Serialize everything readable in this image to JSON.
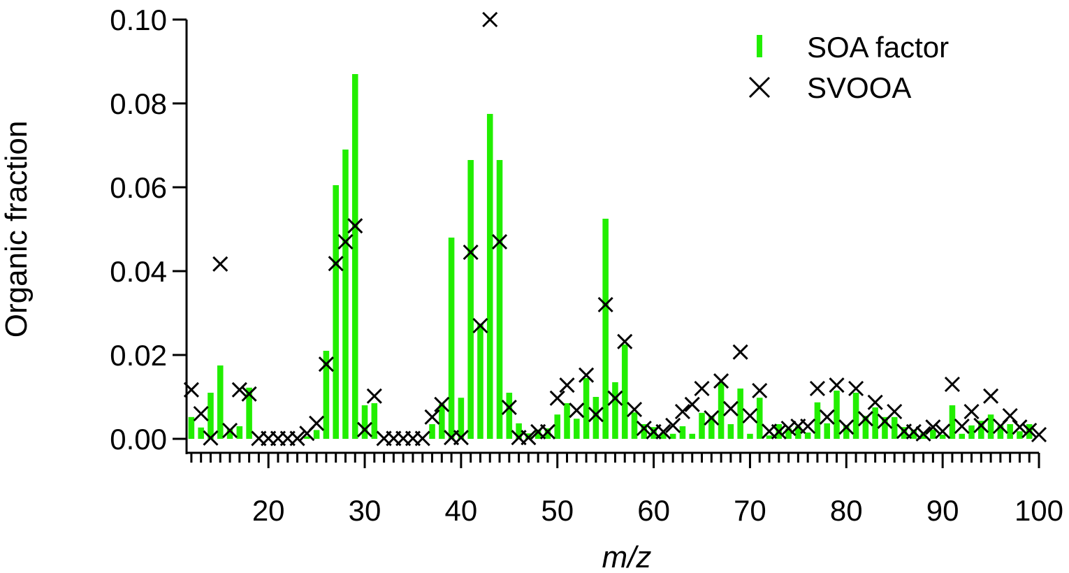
{
  "chart_data": {
    "type": "bar",
    "xlabel": "m/z",
    "ylabel": "Organic fraction",
    "xlim": [
      11.5,
      100
    ],
    "ylim": [
      0,
      0.1
    ],
    "x_ticks": [
      20,
      30,
      40,
      50,
      60,
      70,
      80,
      90,
      100
    ],
    "y_ticks": [
      "0.00",
      "0.02",
      "0.04",
      "0.06",
      "0.08",
      "0.10"
    ],
    "grid": false,
    "legend_position": "top-right",
    "colors": {
      "bar": "#22ee00",
      "marker": "#000000"
    },
    "series": [
      {
        "name": "SOA factor",
        "type": "bar",
        "x": [
          12,
          13,
          14,
          15,
          16,
          17,
          18,
          24,
          25,
          26,
          27,
          28,
          29,
          30,
          31,
          37,
          38,
          39,
          40,
          41,
          42,
          43,
          44,
          45,
          46,
          47,
          48,
          49,
          50,
          51,
          52,
          53,
          54,
          55,
          56,
          57,
          58,
          59,
          60,
          61,
          62,
          63,
          64,
          65,
          66,
          67,
          68,
          69,
          70,
          71,
          72,
          73,
          74,
          75,
          76,
          77,
          78,
          79,
          80,
          81,
          82,
          83,
          84,
          85,
          86,
          87,
          88,
          89,
          90,
          91,
          92,
          93,
          94,
          95,
          96,
          97,
          98,
          99
        ],
        "y": [
          0.0052,
          0.0027,
          0.011,
          0.0175,
          0.0023,
          0.003,
          0.0122,
          0.0006,
          0.0021,
          0.021,
          0.0605,
          0.069,
          0.087,
          0.008,
          0.0085,
          0.0035,
          0.0083,
          0.048,
          0.0098,
          0.0665,
          0.0275,
          0.0775,
          0.0665,
          0.011,
          0.0037,
          0.0013,
          0.0022,
          0.0025,
          0.0058,
          0.0085,
          0.0048,
          0.0145,
          0.01,
          0.0525,
          0.0135,
          0.0225,
          0.0063,
          0.0035,
          0.0028,
          0.0015,
          0.0012,
          0.003,
          0.0012,
          0.0062,
          0.0055,
          0.0135,
          0.0035,
          0.012,
          0.0012,
          0.0098,
          0.0008,
          0.0035,
          0.0025,
          0.003,
          0.0015,
          0.0087,
          0.0037,
          0.0115,
          0.0033,
          0.011,
          0.0055,
          0.0075,
          0.0052,
          0.0052,
          0.0028,
          0.0022,
          0.0013,
          0.0022,
          0.001,
          0.008,
          0.0012,
          0.0032,
          0.0043,
          0.0058,
          0.0032,
          0.0035,
          0.0018,
          0.0035
        ]
      },
      {
        "name": "SVOOA",
        "type": "scatter",
        "marker": "x",
        "x": [
          12,
          13,
          14,
          15,
          16,
          17,
          18,
          19,
          20,
          21,
          22,
          23,
          24,
          25,
          26,
          27,
          28,
          29,
          30,
          31,
          32,
          33,
          34,
          35,
          36,
          37,
          38,
          39,
          40,
          41,
          42,
          43,
          44,
          45,
          46,
          47,
          48,
          49,
          50,
          51,
          52,
          53,
          54,
          55,
          56,
          57,
          58,
          59,
          60,
          61,
          62,
          63,
          64,
          65,
          66,
          67,
          68,
          69,
          70,
          71,
          72,
          73,
          74,
          75,
          76,
          77,
          78,
          79,
          80,
          81,
          82,
          83,
          84,
          85,
          86,
          87,
          88,
          89,
          90,
          91,
          92,
          93,
          94,
          95,
          96,
          97,
          98,
          99,
          100
        ],
        "y": [
          0.0117,
          0.006,
          0.0002,
          0.0417,
          0.002,
          0.0117,
          0.0107,
          0.0001,
          0.0001,
          0.0001,
          0.0001,
          0.0001,
          0.0013,
          0.0037,
          0.0178,
          0.0418,
          0.047,
          0.0508,
          0.0022,
          0.0102,
          0.0001,
          0.0001,
          0.0001,
          0.0001,
          0.0001,
          0.0052,
          0.0082,
          0.0003,
          0.0003,
          0.0445,
          0.027,
          0.1,
          0.047,
          0.0075,
          0.0003,
          0.0003,
          0.0017,
          0.0017,
          0.0097,
          0.0128,
          0.0068,
          0.0152,
          0.0058,
          0.032,
          0.0097,
          0.0232,
          0.007,
          0.0025,
          0.0017,
          0.0017,
          0.0032,
          0.0065,
          0.0082,
          0.012,
          0.005,
          0.0138,
          0.0072,
          0.0207,
          0.0055,
          0.0115,
          0.0018,
          0.0017,
          0.0025,
          0.003,
          0.003,
          0.012,
          0.0052,
          0.0128,
          0.0028,
          0.012,
          0.0048,
          0.0087,
          0.0042,
          0.0065,
          0.0018,
          0.0017,
          0.0012,
          0.0028,
          0.0018,
          0.013,
          0.003,
          0.0065,
          0.0032,
          0.0102,
          0.003,
          0.0055,
          0.0028,
          0.002,
          0.001
        ]
      }
    ]
  }
}
